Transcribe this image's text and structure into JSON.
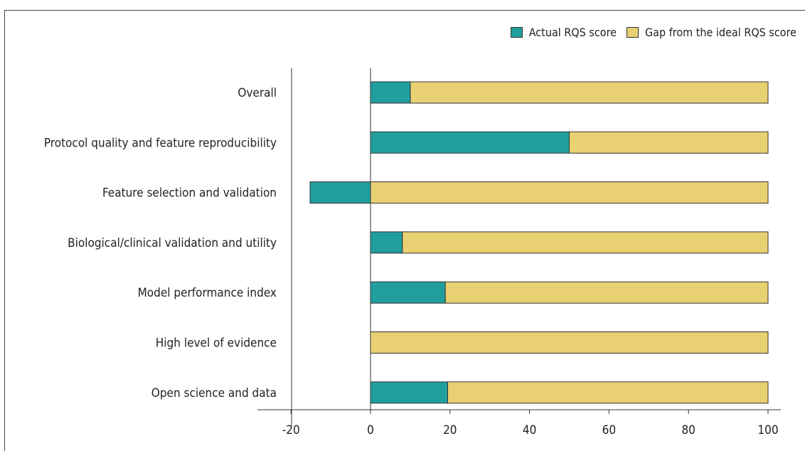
{
  "chart_data": {
    "type": "bar",
    "orientation": "horizontal",
    "stacked": true,
    "categories": [
      "Overall",
      "Protocol quality and feature reproducibility",
      "Feature selection and validation",
      "Biological/clinical validation and utility",
      "Model performance index",
      "High level of evidence",
      "Open science and data"
    ],
    "series": [
      {
        "name": "Actual RQS score",
        "color": "#219e9e",
        "values": [
          10,
          50,
          -15.2,
          8,
          18.8,
          0,
          19.4
        ]
      },
      {
        "name": "Gap from the ideal RQS score",
        "color": "#e8d073",
        "values": [
          90,
          50,
          100,
          92,
          81.2,
          100,
          80.6
        ]
      }
    ],
    "x_ticks": [
      "-20",
      "0",
      "20",
      "40",
      "60",
      "80",
      "100"
    ],
    "xlim": [
      -28,
      105
    ],
    "grid": false,
    "legend_position": "top-right"
  }
}
